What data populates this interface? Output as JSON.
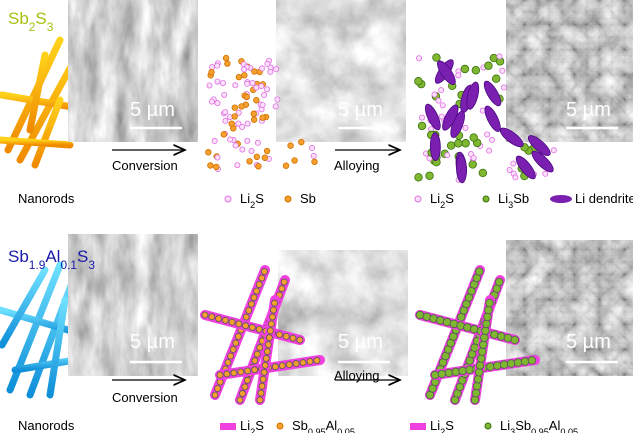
{
  "panels": [
    {
      "title": [
        "Sb",
        "2",
        "S",
        "3"
      ],
      "steps": [
        "Conversion",
        "Alloying"
      ],
      "scale_bars": [
        "5 µm",
        "5 µm",
        "5 µm"
      ],
      "start_label": "Nanorods",
      "legend_conversion": [
        [
          "Li",
          "2",
          "S"
        ],
        [
          "Sb"
        ]
      ],
      "legend_alloying": [
        [
          "Li",
          "2",
          "S"
        ],
        [
          "Li",
          "3",
          "Sb"
        ],
        [
          "Li dendrites"
        ]
      ]
    },
    {
      "title": [
        "Sb",
        "1.9",
        "Al",
        "0.1",
        "S",
        "3"
      ],
      "steps": [
        "Conversion",
        "Alloying"
      ],
      "scale_bars": [
        "5 µm",
        "5 µm",
        "5 µm"
      ],
      "start_label": "Nanorods",
      "legend_conversion": [
        [
          "Li",
          "2",
          "S"
        ],
        [
          "Sb",
          "0.95",
          "Al",
          "0.05"
        ]
      ],
      "legend_alloying": [
        [
          "Li",
          "2",
          "S"
        ],
        [
          "Li",
          "3",
          "Sb",
          "0.95",
          "Al",
          "0.05"
        ]
      ]
    }
  ]
}
